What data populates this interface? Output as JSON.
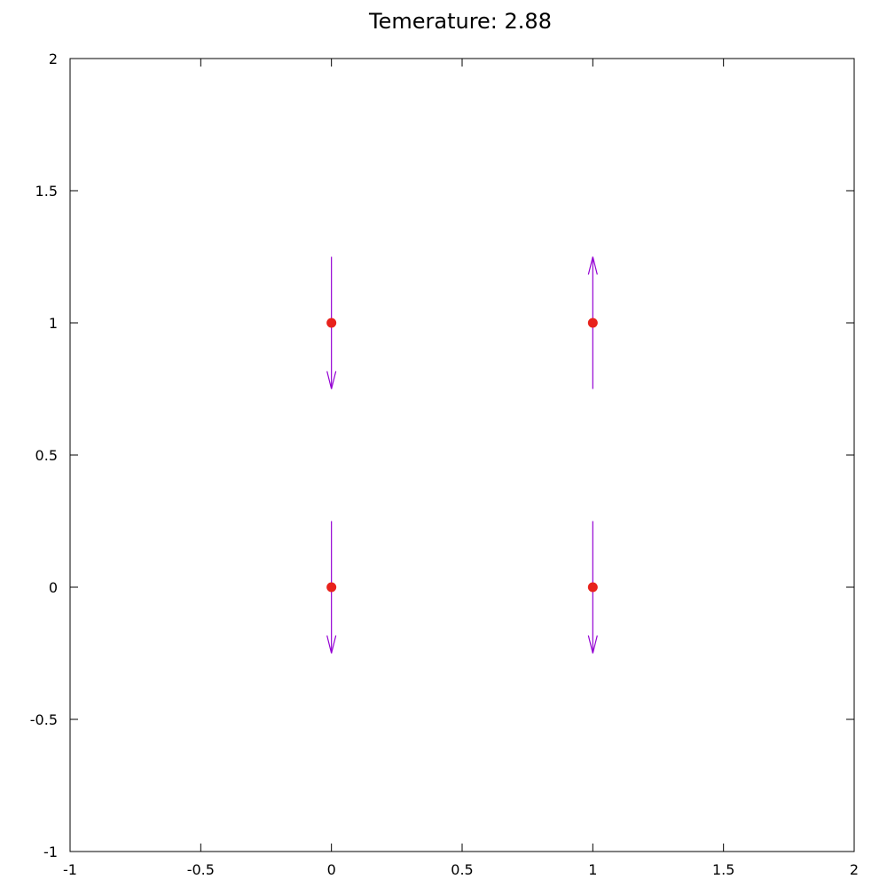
{
  "chart_data": {
    "type": "scatter",
    "title": "Temerature: 2.88",
    "xlabel": "",
    "ylabel": "",
    "xlim": [
      -1,
      2
    ],
    "ylim": [
      -1,
      2
    ],
    "x_ticks": [
      -1,
      -0.5,
      0,
      0.5,
      1,
      1.5,
      2
    ],
    "x_tick_labels": [
      "-1",
      "-0.5",
      "0",
      "0.5",
      "1",
      "1.5",
      "2"
    ],
    "y_ticks": [
      -1,
      -0.5,
      0,
      0.5,
      1,
      1.5,
      2
    ],
    "y_tick_labels": [
      "-1",
      "-0.5",
      "0",
      "0.5",
      "1",
      "1.5",
      "2"
    ],
    "grid": false,
    "legend": "none",
    "points": [
      {
        "x": 0,
        "y": 1
      },
      {
        "x": 1,
        "y": 1
      },
      {
        "x": 0,
        "y": 0
      },
      {
        "x": 1,
        "y": 0
      }
    ],
    "vectors": [
      {
        "x": 0,
        "y": 1,
        "dx": 0,
        "dy": -0.25,
        "spin": "down"
      },
      {
        "x": 1,
        "y": 1,
        "dx": 0,
        "dy": 0.25,
        "spin": "up"
      },
      {
        "x": 0,
        "y": 0,
        "dx": 0,
        "dy": -0.25,
        "spin": "down"
      },
      {
        "x": 1,
        "y": 0,
        "dx": 0,
        "dy": -0.25,
        "spin": "down"
      }
    ],
    "colors": {
      "point": "#e8221c",
      "arrow": "#9400d3",
      "axis": "#000000"
    }
  }
}
